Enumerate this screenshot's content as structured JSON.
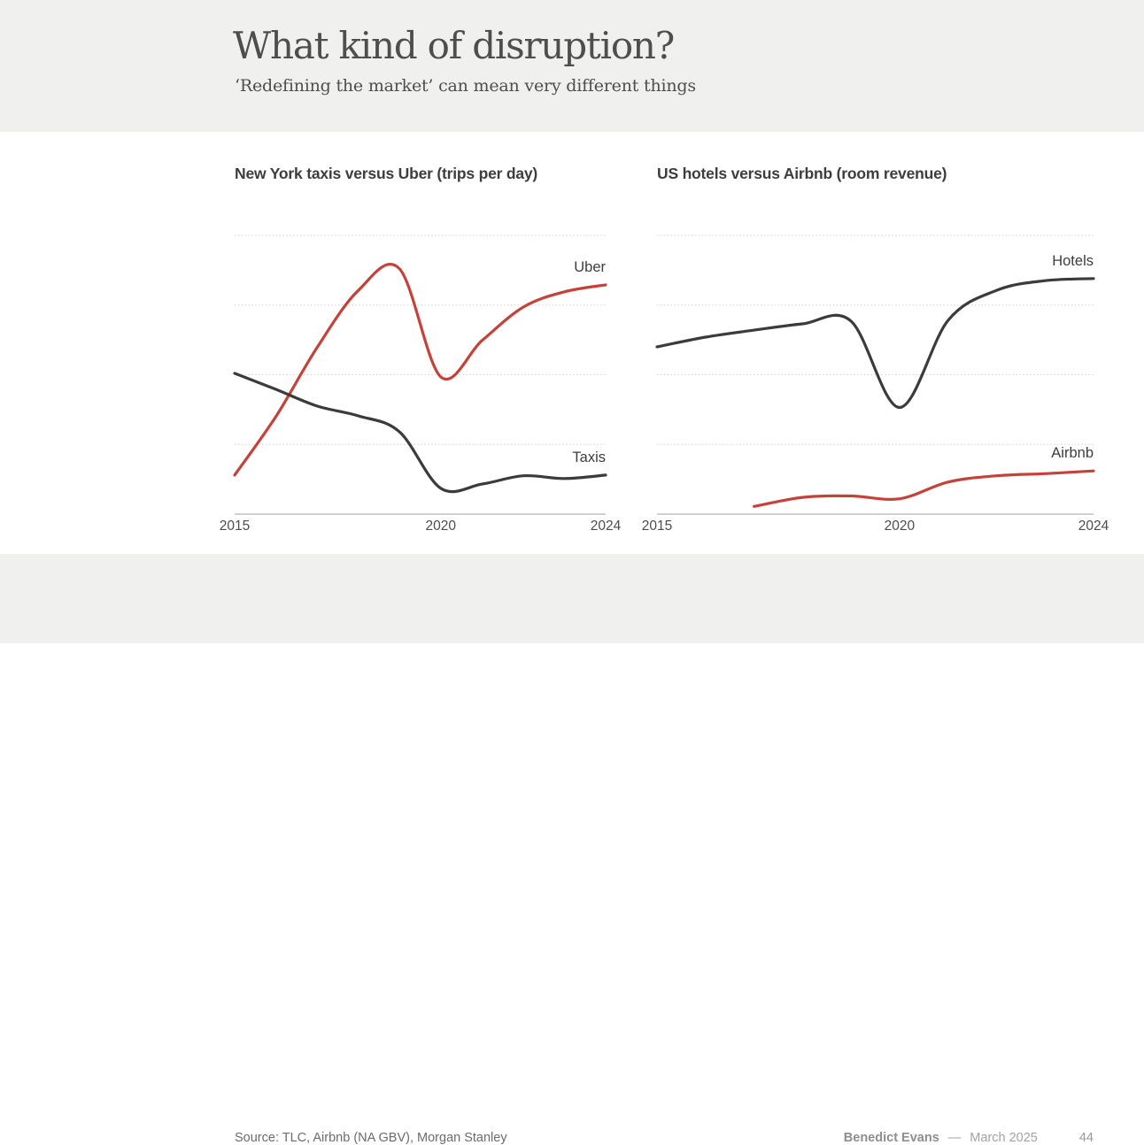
{
  "slide": {
    "title": "What kind of disruption?",
    "subtitle": "‘Redefining the market’ can mean very different things"
  },
  "colors": {
    "band_bg": "#f0f0ee",
    "body_bg": "#ffffff",
    "accent_red": "#c5423b",
    "line_dark": "#3b3b3b",
    "gridline": "#cbcbcb",
    "axis": "#b5b5b5",
    "tick_label": "#4d4d4d",
    "series_label": "#3d3d3d"
  },
  "chart_data": [
    {
      "type": "line",
      "title": "New York taxis versus Uber (trips per day)",
      "x": [
        2015,
        2016,
        2017,
        2018,
        2019,
        2020,
        2021,
        2022,
        2023,
        2024
      ],
      "x_ticks": [
        "2015",
        "2020",
        "2024"
      ],
      "ylim": [
        0,
        400
      ],
      "gridline_values": [
        100,
        200,
        300,
        400
      ],
      "grid_style": "dotted-horizontal",
      "y_axis_labels_visible": false,
      "legend_position": "labels-at-right-edge",
      "series": [
        {
          "name": "Uber",
          "color": "#c5423b",
          "values": [
            56,
            140,
            239,
            321,
            352,
            197,
            249,
            297,
            319,
            329
          ]
        },
        {
          "name": "Taxis",
          "color": "#3b3b3b",
          "values": [
            202,
            179,
            155,
            141,
            118,
            37,
            43,
            55,
            51,
            56
          ]
        }
      ]
    },
    {
      "type": "line",
      "title": "US hotels versus Airbnb (room revenue)",
      "x": [
        2015,
        2016,
        2017,
        2018,
        2019,
        2020,
        2021,
        2022,
        2023,
        2024
      ],
      "x_ticks": [
        "2015",
        "2020",
        "2024"
      ],
      "ylim": [
        0,
        400
      ],
      "gridline_values": [
        100,
        200,
        300,
        400
      ],
      "grid_style": "dotted-horizontal",
      "y_axis_labels_visible": false,
      "legend_position": "labels-at-right-edge",
      "series": [
        {
          "name": "Hotels",
          "color": "#3b3b3b",
          "values": [
            240,
            254,
            264,
            273,
            277,
            153,
            278,
            321,
            335,
            338
          ]
        },
        {
          "name": "Airbnb",
          "color": "#c5423b",
          "values": [
            null,
            null,
            11,
            24,
            26,
            22,
            46,
            55,
            58,
            62
          ]
        }
      ]
    }
  ],
  "footer": {
    "source": "Source: TLC, Airbnb (NA GBV), Morgan Stanley",
    "author": "Benedict Evans",
    "separator": "—",
    "date": "March 2025",
    "page_number": "44"
  }
}
